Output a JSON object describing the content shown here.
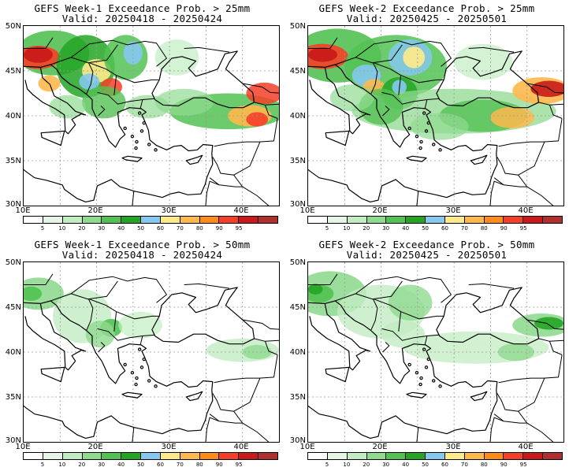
{
  "palette": [
    "#ffffff",
    "#e6f6e6",
    "#c2ecc2",
    "#90da90",
    "#52c252",
    "#23a523",
    "#85c8f0",
    "#ffea8a",
    "#ffb84d",
    "#ff8c1a",
    "#f44028",
    "#c81a1a",
    "#b03030"
  ],
  "colorbar_labels": [
    "5",
    "10",
    "20",
    "30",
    "40",
    "50",
    "60",
    "70",
    "80",
    "90",
    "95"
  ],
  "panels": [
    {
      "id": "w1-25",
      "title": "GEFS Week-1 Exceedance Prob. > 25mm",
      "valid": "Valid: 20250418 - 20250424",
      "y_labels": [
        "50N",
        "45N",
        "40N",
        "35N",
        "30N"
      ],
      "x_labels": [
        "10E",
        "20E",
        "30E",
        "40E"
      ],
      "intensity": "high"
    },
    {
      "id": "w2-25",
      "title": "GEFS Week-2 Exceedance Prob. > 25mm",
      "valid": "Valid: 20250425 - 20250501",
      "y_labels": [
        "50N",
        "45N",
        "40N",
        "35N",
        "30N"
      ],
      "x_labels": [
        "10E",
        "20E",
        "30E",
        "40E"
      ],
      "intensity": "high2"
    },
    {
      "id": "w1-50",
      "title": "GEFS Week-1 Exceedance Prob. > 50mm",
      "valid": "Valid: 20250418 - 20250424",
      "y_labels": [
        "50N",
        "45N",
        "40N",
        "35N",
        "30N"
      ],
      "x_labels": [
        "10E",
        "20E",
        "30E",
        "40E"
      ],
      "intensity": "low"
    },
    {
      "id": "w2-50",
      "title": "GEFS Week-2 Exceedance Prob. > 50mm",
      "valid": "Valid: 20250425 - 20250501",
      "y_labels": [
        "50N",
        "45N",
        "40N",
        "35N",
        "30N"
      ],
      "x_labels": [
        "10E",
        "20E",
        "30E",
        "40E"
      ],
      "intensity": "low2"
    }
  ]
}
